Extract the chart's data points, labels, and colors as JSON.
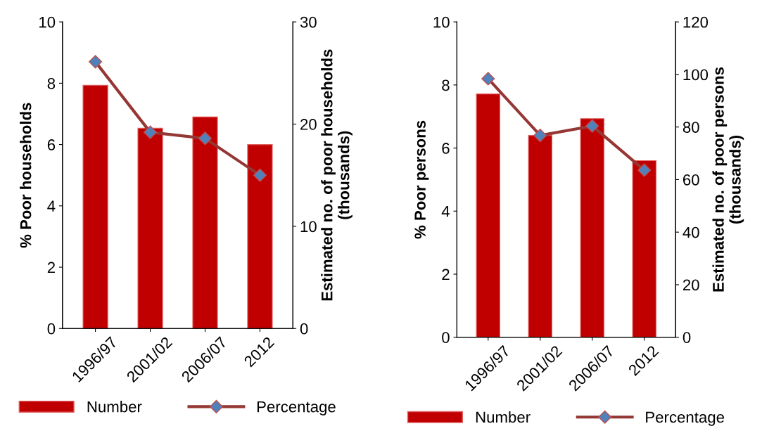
{
  "chart_data": [
    {
      "type": "bar",
      "categories": [
        "1996/97",
        "2001/02",
        "2006/07",
        "2012"
      ],
      "ylabel": "% Poor households",
      "y2label": "Estimated no. of poor households\n(thousands)",
      "ylim": [
        0,
        10
      ],
      "yticks": [
        0,
        2,
        4,
        6,
        8,
        10
      ],
      "y2lim": [
        0,
        30
      ],
      "y2ticks": [
        0,
        10,
        20,
        30
      ],
      "legend": "bottom",
      "grid": false,
      "series": [
        {
          "name": "Number",
          "axis": "y2",
          "color": "#c00000",
          "values": [
            23.8,
            19.6,
            20.7,
            18.0
          ]
        },
        {
          "name": "Percentage",
          "type": "line",
          "axis": "y",
          "color": "#953735",
          "marker": "diamond",
          "values": [
            8.7,
            6.4,
            6.2,
            5.0
          ]
        }
      ]
    },
    {
      "type": "bar",
      "categories": [
        "1996/97",
        "2001/02",
        "2006/07",
        "2012"
      ],
      "ylabel": "% Poor persons",
      "y2label": "Estimated no. of poor persons\n(thousands)",
      "ylim": [
        0,
        10
      ],
      "yticks": [
        0,
        2,
        4,
        6,
        8,
        10
      ],
      "y2lim": [
        0,
        120
      ],
      "y2ticks": [
        0,
        20,
        40,
        60,
        80,
        100,
        120
      ],
      "legend": "bottom",
      "grid": false,
      "series": [
        {
          "name": "Number",
          "axis": "y2",
          "color": "#c00000",
          "values": [
            92.6,
            76.8,
            83.2,
            67.2
          ]
        },
        {
          "name": "Percentage",
          "type": "line",
          "axis": "y",
          "color": "#953735",
          "marker": "diamond",
          "values": [
            8.2,
            6.4,
            6.7,
            5.3
          ]
        }
      ]
    }
  ]
}
